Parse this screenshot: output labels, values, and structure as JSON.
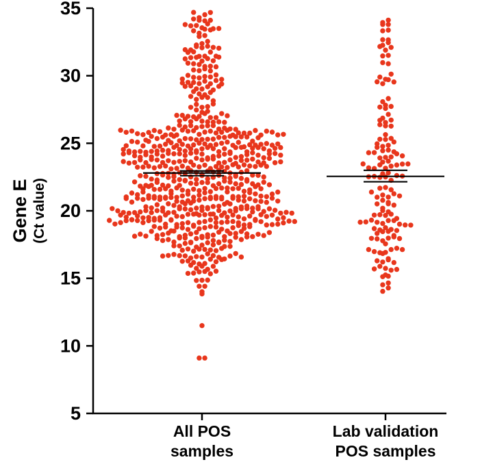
{
  "chart_data": {
    "type": "scatter",
    "subtype": "dot-plot",
    "categories": [
      {
        "line1": "All POS",
        "line2": "samples"
      },
      {
        "line1": "Lab validation",
        "line2": "POS samples"
      }
    ],
    "ylabel": "Gene E",
    "ylabel_sub": "(Ct value)",
    "ylim": [
      5,
      35
    ],
    "yticks": [
      5,
      10,
      15,
      20,
      25,
      30,
      35
    ],
    "yticks_text": [
      "5",
      "10",
      "15",
      "20",
      "25",
      "30",
      "35"
    ],
    "series": [
      {
        "name": "All POS samples",
        "count": 700,
        "mean": 22.8,
        "ci_upper": 22.95,
        "ci_lower": 22.6,
        "outliers": [
          11.5,
          9.1,
          9.1
        ]
      },
      {
        "name": "Lab validation POS samples",
        "count": 150,
        "mean": 22.55,
        "ci_upper": 23.0,
        "ci_lower": 22.15,
        "outliers": []
      }
    ],
    "grid": false,
    "legend": "none"
  },
  "colors": {
    "dots": "#e8361c",
    "axis": "#000000",
    "mean_line": "#000000"
  }
}
